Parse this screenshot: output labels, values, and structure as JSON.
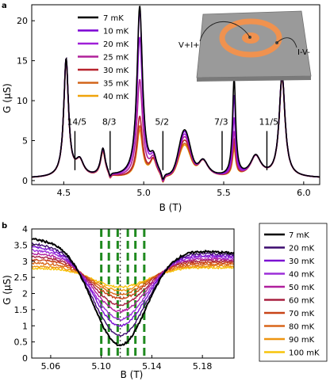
{
  "chart_data": [
    {
      "panel": "a",
      "type": "line",
      "xlabel": "B (T)",
      "ylabel": "G (μS)",
      "xlim": [
        4.3,
        6.1
      ],
      "ylim": [
        -0.5,
        22
      ],
      "xticks": [
        4.5,
        5.0,
        5.5,
        6.0
      ],
      "xtick_labels": [
        "4.5",
        "5.0",
        "5.5",
        "6.0"
      ],
      "yticks": [
        0,
        5,
        10,
        15,
        20
      ],
      "ytick_labels": [
        "0",
        "5",
        "10",
        "15",
        "20"
      ],
      "legend_position": "top-left",
      "series": [
        {
          "name": "7 mK",
          "color": "#000000",
          "peaks": {
            "p451": 14.7,
            "p474": 3.4,
            "p497": 21.3,
            "p525": 5.6,
            "p556": 12.1,
            "p585": 12.8
          }
        },
        {
          "name": "10 mK",
          "color": "#7b00d4",
          "peaks": {
            "p451": 14.7,
            "p474": 3.4,
            "p497": 20.8,
            "p525": 5.4,
            "p556": 10.0,
            "p585": 12.8
          }
        },
        {
          "name": "20 mK",
          "color": "#9f1fd8",
          "peaks": {
            "p451": 14.6,
            "p474": 3.3,
            "p497": 17.4,
            "p525": 5.1,
            "p556": 7.2,
            "p585": 12.7
          }
        },
        {
          "name": "25 mK",
          "color": "#b0209a",
          "peaks": {
            "p451": 14.6,
            "p474": 3.3,
            "p497": 12.1,
            "p525": 4.8,
            "p556": 5.5,
            "p585": 12.7
          }
        },
        {
          "name": "30 mK",
          "color": "#b8232e",
          "peaks": {
            "p451": 14.5,
            "p474": 3.2,
            "p497": 7.5,
            "p525": 4.4,
            "p556": 4.4,
            "p585": 12.6
          }
        },
        {
          "name": "35 mK",
          "color": "#d2651a",
          "peaks": {
            "p451": 14.5,
            "p474": 3.2,
            "p497": 6.3,
            "p525": 4.0,
            "p556": 3.7,
            "p585": 12.6
          }
        },
        {
          "name": "40 mK",
          "color": "#f0a30a",
          "peaks": {
            "p451": 14.4,
            "p474": 3.1,
            "p497": 5.8,
            "p525": 3.8,
            "p556": 3.3,
            "p585": 12.5
          }
        }
      ],
      "annotations": [
        {
          "text": "14/5",
          "x": 4.57
        },
        {
          "text": "8/3",
          "x": 4.79
        },
        {
          "text": "5/2",
          "x": 5.12
        },
        {
          "text": "7/3",
          "x": 5.49
        },
        {
          "text": "11/5",
          "x": 5.77
        }
      ],
      "inset_labels": {
        "left": "V+I+",
        "right": "I-V-"
      }
    },
    {
      "panel": "b",
      "type": "line",
      "xlabel": "B (T)",
      "ylabel": "G (μS)",
      "xlim": [
        5.045,
        5.205
      ],
      "ylim": [
        0,
        4
      ],
      "xticks": [
        5.06,
        5.1,
        5.14,
        5.18
      ],
      "xtick_labels": [
        "5.06",
        "5.10",
        "5.14",
        "5.18"
      ],
      "yticks": [
        0,
        0.5,
        1,
        1.5,
        2,
        2.5,
        3,
        3.5,
        4
      ],
      "ytick_labels": [
        "0",
        "0.5",
        "1",
        "1.5",
        "2",
        "2.5",
        "3",
        "3.5",
        "4"
      ],
      "legend_position": "outside-right",
      "dashed_vertical_lines_x": [
        5.1,
        5.106,
        5.113,
        5.121,
        5.127,
        5.134
      ],
      "dotted_vertical_line_x": 5.115,
      "series": [
        {
          "name": "7 mK",
          "color": "#000000",
          "min": 0.4,
          "left_edge": 3.7,
          "right_edge": 3.25
        },
        {
          "name": "20 mK",
          "color": "#3c0a6e",
          "min": 0.7,
          "left_edge": 3.55,
          "right_edge": 3.2
        },
        {
          "name": "30 mK",
          "color": "#7b12d2",
          "min": 1.0,
          "left_edge": 3.45,
          "right_edge": 3.15
        },
        {
          "name": "40 mK",
          "color": "#9c2ed8",
          "min": 1.2,
          "left_edge": 3.35,
          "right_edge": 3.1
        },
        {
          "name": "50 mK",
          "color": "#b01f9d",
          "min": 1.45,
          "left_edge": 3.25,
          "right_edge": 3.05
        },
        {
          "name": "60 mK",
          "color": "#a82040",
          "min": 1.65,
          "left_edge": 3.15,
          "right_edge": 3.0
        },
        {
          "name": "70 mK",
          "color": "#c84318",
          "min": 1.85,
          "left_edge": 3.05,
          "right_edge": 2.95
        },
        {
          "name": "80 mK",
          "color": "#d9661a",
          "min": 1.98,
          "left_edge": 2.95,
          "right_edge": 2.9
        },
        {
          "name": "90 mK",
          "color": "#ee9510",
          "min": 2.1,
          "left_edge": 2.85,
          "right_edge": 2.85
        },
        {
          "name": "100 mK",
          "color": "#f7c40a",
          "min": 2.2,
          "left_edge": 2.78,
          "right_edge": 2.8
        }
      ]
    }
  ]
}
